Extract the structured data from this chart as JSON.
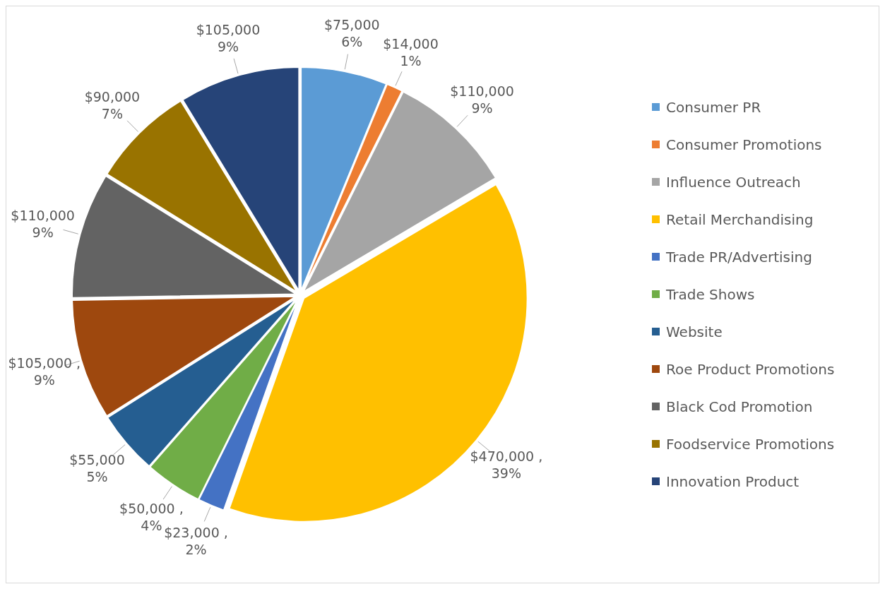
{
  "chart_data": {
    "type": "pie",
    "categories": [
      "Consumer PR",
      "Consumer Promotions",
      "Influence Outreach",
      "Retail Merchandising",
      "Trade PR/Advertising",
      "Trade Shows",
      "Website",
      "Roe Product Promotions",
      "Black Cod Promotion",
      "Foodservice Promotions",
      "Innovation Product"
    ],
    "values": [
      75000,
      14000,
      110000,
      470000,
      23000,
      50000,
      55000,
      105000,
      110000,
      90000,
      105000
    ],
    "colors": [
      "#5b9bd5",
      "#ed7d31",
      "#a5a5a5",
      "#ffc000",
      "#4472c4",
      "#70ad47",
      "#255e91",
      "#9e480e",
      "#636363",
      "#997300",
      "#264478"
    ],
    "value_labels": [
      "$75,000\n6%",
      "$14,000\n1%",
      "$110,000\n9%",
      "$470,000 ,\n39%",
      "$23,000 ,\n2%",
      "$50,000 ,\n4%",
      "$55,000\n5%",
      "$105,000 ,\n9%",
      "$110,000\n9%",
      "$90,000\n7%",
      "$105,000\n9%"
    ],
    "legend": "right"
  }
}
